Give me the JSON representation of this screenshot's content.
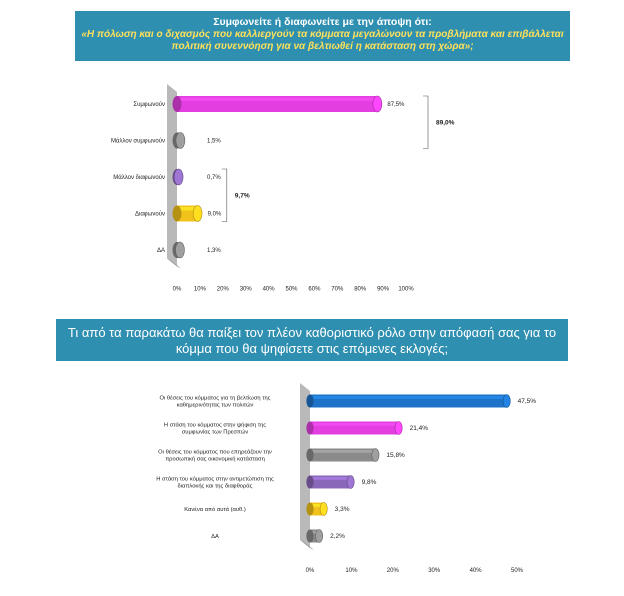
{
  "chart_data": [
    {
      "type": "bar",
      "orientation": "horizontal",
      "title": "Συμφωνείτε ή διαφωνείτε με την άποψη ότι:",
      "subtitle": "«Η πόλωση και ο διχασμός που καλλιεργούν τα κόμματα μεγαλώνουν τα προβλήματα και επιβάλλεται πολιτική συνεννόηση για να βελτιωθεί η κατάσταση στη χώρα»;",
      "categories": [
        "Συμφωνούν",
        "Μάλλον συμφωνούν",
        "Μάλλον διαφωνούν",
        "Διαφωνούν",
        "ΔΑ"
      ],
      "values": [
        87.5,
        1.5,
        0.7,
        9.0,
        1.3
      ],
      "value_labels": [
        "87,5%",
        "1,5%",
        "0,7%",
        "9,0%",
        "1,3%"
      ],
      "colors": [
        "#e23ee0",
        "#8a8a8a",
        "#8a67b8",
        "#f1c21b",
        "#8a8a8a"
      ],
      "xlim": [
        0,
        100
      ],
      "xticks": [
        "0%",
        "10%",
        "20%",
        "30%",
        "40%",
        "50%",
        "60%",
        "70%",
        "80%",
        "90%",
        "100%"
      ],
      "brackets": [
        {
          "label": "89,0%",
          "from": 0,
          "to": 1
        },
        {
          "label": "9,7%",
          "from": 2,
          "to": 3
        }
      ]
    },
    {
      "type": "bar",
      "orientation": "horizontal",
      "title": "Τι από τα παρακάτω θα παίξει τον πλέον καθοριστικό ρόλο στην απόφασή σας για το κόμμα που θα ψηφίσετε στις επόμενες εκλογές;",
      "categories": [
        "Οι θέσεις του κόμματος για τη βελτίωση της καθημερινότητας των πολιτών",
        "Η στάση του κόμματος στην ψήφιση της συμφωνίας των Πρεσπών",
        "Οι θέσεις του κόμματος που επηρεάζουν την προσωπική σας οικονομική κατάσταση",
        "Η στάση του κόμματος στην αντιμετώπιση της διαπλοκής και της διαφθοράς",
        "Κανένα από αυτά (αυθ.)",
        "ΔΑ"
      ],
      "values": [
        47.5,
        21.4,
        15.8,
        9.8,
        3.3,
        2.2
      ],
      "value_labels": [
        "47,5%",
        "21,4%",
        "15,8%",
        "9,8%",
        "3,3%",
        "2,2%"
      ],
      "colors": [
        "#1e73c8",
        "#e23ee0",
        "#8a8a8a",
        "#8a67b8",
        "#f1c21b",
        "#8a8a8a"
      ],
      "xlim": [
        0,
        50
      ],
      "xticks": [
        "0%",
        "10%",
        "20%",
        "30%",
        "40%",
        "50%"
      ]
    }
  ]
}
